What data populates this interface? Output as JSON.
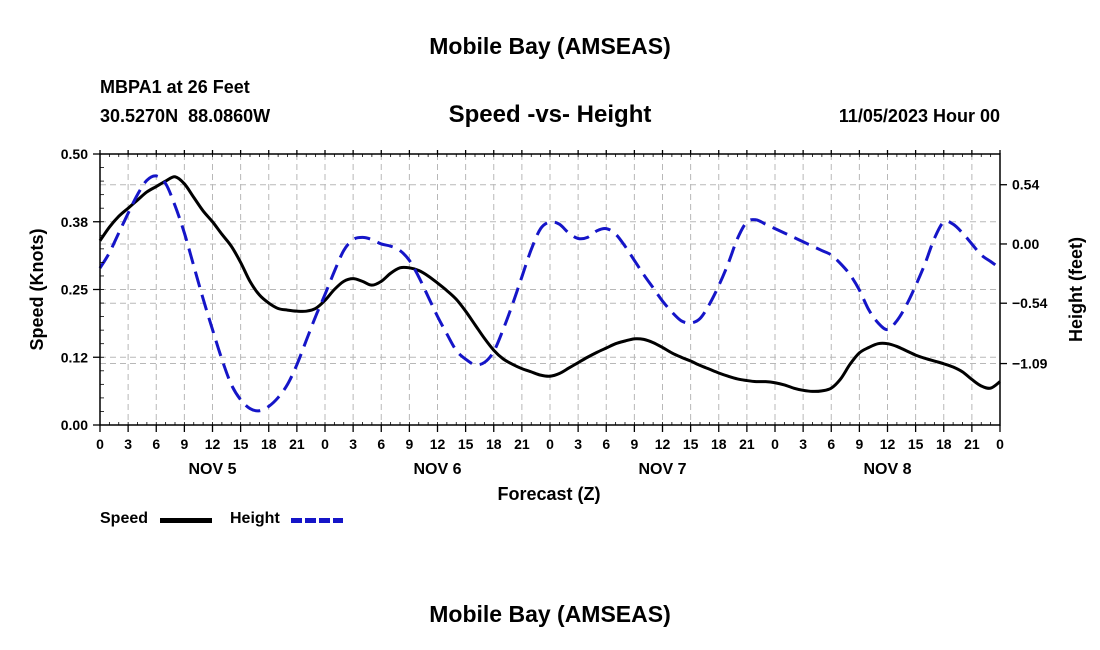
{
  "page_title": "Mobile Bay (AMSEAS)",
  "footer_title": "Mobile Bay (AMSEAS)",
  "station": {
    "name_depth": "MBPA1 at 26 Feet",
    "coordinates": "30.5270N  88.0860W"
  },
  "forecast_time": "11/05/2023 Hour 00",
  "legend": {
    "speed_label": "Speed",
    "height_label": "Height"
  },
  "colors": {
    "speed": "#000000",
    "height": "#1515c8",
    "grid": "#b8b8b8"
  },
  "chart_data": {
    "type": "line",
    "title": "Speed -vs- Height",
    "xlabel": "Forecast (Z)",
    "ylabel": "Speed (Knots)",
    "y2label": "Height (feet)",
    "x_range_hours": [
      0,
      96
    ],
    "xtick_hours": [
      0,
      3,
      6,
      9,
      12,
      15,
      18,
      21,
      24,
      27,
      30,
      33,
      36,
      39,
      42,
      45,
      48,
      51,
      54,
      57,
      60,
      63,
      66,
      69,
      72,
      75,
      78,
      81,
      84,
      87,
      90,
      93,
      96
    ],
    "xtick_labels": [
      "0",
      "3",
      "6",
      "9",
      "12",
      "15",
      "18",
      "21",
      "0",
      "3",
      "6",
      "9",
      "12",
      "15",
      "18",
      "21",
      "0",
      "3",
      "6",
      "9",
      "12",
      "15",
      "18",
      "21",
      "0",
      "3",
      "6",
      "9",
      "12",
      "15",
      "18",
      "21",
      "0"
    ],
    "day_labels": [
      {
        "hour": 12,
        "label": "NOV 5"
      },
      {
        "hour": 36,
        "label": "NOV 6"
      },
      {
        "hour": 60,
        "label": "NOV 7"
      },
      {
        "hour": 84,
        "label": "NOV 8"
      }
    ],
    "ylim": [
      0,
      0.5
    ],
    "yticks": [
      0,
      0.125,
      0.25,
      0.375,
      0.5
    ],
    "ytick_labels": [
      "0.00",
      "0.12",
      "0.25",
      "0.38",
      "0.50"
    ],
    "y2lim": [
      -1.65,
      0.82
    ],
    "y2ticks": [
      -1.09,
      -0.54,
      0.0,
      0.54
    ],
    "y2tick_labels": [
      "−1.09",
      "−0.54",
      "0.00",
      "0.54"
    ],
    "series": [
      {
        "name": "Speed",
        "axis": "left",
        "style": "solid",
        "x": [
          0,
          1,
          2,
          3,
          4,
          5,
          6,
          7,
          8,
          9,
          10,
          11,
          12,
          13,
          14,
          15,
          16,
          17,
          18,
          19,
          20,
          21,
          22,
          23,
          24,
          25,
          26,
          27,
          28,
          29,
          30,
          31,
          32,
          33,
          34,
          35,
          36,
          37,
          38,
          39,
          40,
          41,
          42,
          43,
          44,
          45,
          46,
          47,
          48,
          49,
          50,
          51,
          52,
          53,
          54,
          55,
          56,
          57,
          58,
          59,
          60,
          61,
          62,
          63,
          64,
          65,
          66,
          67,
          68,
          69,
          70,
          71,
          72,
          73,
          74,
          75,
          76,
          77,
          78,
          79,
          80,
          81,
          82,
          83,
          84,
          85,
          86,
          87,
          88,
          89,
          90,
          91,
          92,
          93,
          94,
          95,
          96
        ],
        "values": [
          0.34,
          0.365,
          0.385,
          0.4,
          0.415,
          0.43,
          0.44,
          0.45,
          0.458,
          0.445,
          0.42,
          0.395,
          0.375,
          0.352,
          0.33,
          0.3,
          0.265,
          0.24,
          0.225,
          0.215,
          0.212,
          0.21,
          0.21,
          0.215,
          0.23,
          0.25,
          0.265,
          0.27,
          0.265,
          0.258,
          0.265,
          0.28,
          0.29,
          0.29,
          0.285,
          0.275,
          0.262,
          0.248,
          0.232,
          0.21,
          0.185,
          0.16,
          0.138,
          0.122,
          0.112,
          0.104,
          0.098,
          0.092,
          0.09,
          0.095,
          0.105,
          0.115,
          0.125,
          0.134,
          0.142,
          0.15,
          0.155,
          0.159,
          0.158,
          0.152,
          0.143,
          0.133,
          0.125,
          0.118,
          0.11,
          0.103,
          0.096,
          0.09,
          0.085,
          0.082,
          0.08,
          0.08,
          0.078,
          0.074,
          0.068,
          0.064,
          0.062,
          0.063,
          0.068,
          0.085,
          0.112,
          0.133,
          0.143,
          0.15,
          0.15,
          0.145,
          0.137,
          0.129,
          0.123,
          0.118,
          0.113,
          0.107,
          0.098,
          0.084,
          0.072,
          0.068,
          0.08
        ]
      },
      {
        "name": "Height",
        "axis": "right",
        "style": "dashed",
        "x": [
          0,
          1,
          2,
          3,
          4,
          5,
          6,
          7,
          8,
          9,
          10,
          11,
          12,
          13,
          14,
          15,
          16,
          17,
          18,
          19,
          20,
          21,
          22,
          23,
          24,
          25,
          26,
          27,
          28,
          29,
          30,
          31,
          32,
          33,
          34,
          35,
          36,
          37,
          38,
          39,
          40,
          41,
          42,
          43,
          44,
          45,
          46,
          47,
          48,
          49,
          50,
          51,
          52,
          53,
          54,
          55,
          56,
          57,
          58,
          59,
          60,
          61,
          62,
          63,
          64,
          65,
          66,
          67,
          68,
          69,
          70,
          71,
          72,
          73,
          74,
          75,
          76,
          77,
          78,
          79,
          80,
          81,
          82,
          83,
          84,
          85,
          86,
          87,
          88,
          89,
          90,
          91,
          92,
          93,
          94,
          95,
          96
        ],
        "values": [
          -0.22,
          -0.08,
          0.1,
          0.28,
          0.45,
          0.58,
          0.62,
          0.55,
          0.35,
          0.1,
          -0.2,
          -0.5,
          -0.78,
          -1.05,
          -1.28,
          -1.42,
          -1.5,
          -1.52,
          -1.48,
          -1.4,
          -1.28,
          -1.1,
          -0.88,
          -0.66,
          -0.46,
          -0.25,
          -0.06,
          0.04,
          0.06,
          0.04,
          0.0,
          -0.02,
          -0.06,
          -0.15,
          -0.3,
          -0.48,
          -0.66,
          -0.82,
          -0.97,
          -1.05,
          -1.1,
          -1.08,
          -0.98,
          -0.78,
          -0.55,
          -0.3,
          -0.05,
          0.14,
          0.2,
          0.18,
          0.1,
          0.05,
          0.06,
          0.12,
          0.14,
          0.09,
          -0.02,
          -0.15,
          -0.28,
          -0.4,
          -0.52,
          -0.62,
          -0.7,
          -0.72,
          -0.68,
          -0.55,
          -0.38,
          -0.18,
          0.05,
          0.2,
          0.22,
          0.18,
          0.14,
          0.1,
          0.06,
          0.02,
          -0.02,
          -0.06,
          -0.1,
          -0.18,
          -0.28,
          -0.42,
          -0.6,
          -0.72,
          -0.78,
          -0.7,
          -0.56,
          -0.38,
          -0.18,
          0.05,
          0.2,
          0.18,
          0.1,
          0.0,
          -0.1,
          -0.16,
          -0.22
        ]
      }
    ]
  }
}
